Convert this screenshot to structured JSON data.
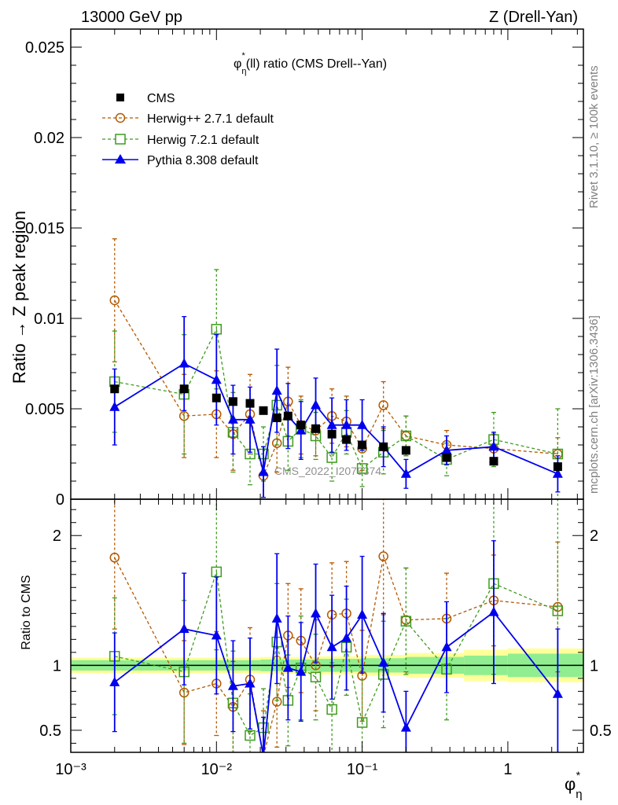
{
  "header": {
    "left": "13000 GeV pp",
    "right": "Z (Drell-Yan)"
  },
  "side_labels": {
    "rivet": "Rivet 3.1.10, ≥ 100k events",
    "mcplots": "mcplots.cern.ch [arXiv:1306.3436]"
  },
  "watermark": "CMS_2022_I2079374",
  "chart_data": [
    {
      "type": "scatter",
      "panel": "main",
      "title_main": "φ",
      "title_sup": "*",
      "title_sub": "η",
      "title_rest": "(ll) ratio (CMS Drell--Yan)",
      "ylabel": "Ratio → Z peak region",
      "x_scale": "log",
      "xlim": [
        0.001,
        3.3
      ],
      "ylim": [
        0,
        0.026
      ],
      "yticks": [
        0,
        0.005,
        0.01,
        0.015,
        0.02,
        0.025
      ],
      "ytick_labels": [
        "0",
        "0.005",
        "0.01",
        "0.015",
        "0.02",
        "0.025"
      ],
      "legend_position": "top-left",
      "x": [
        0.002,
        0.006,
        0.01,
        0.013,
        0.017,
        0.021,
        0.026,
        0.031,
        0.038,
        0.048,
        0.062,
        0.078,
        0.1,
        0.14,
        0.2,
        0.38,
        0.8,
        2.2
      ],
      "series": [
        {
          "name": "CMS",
          "color": "#000000",
          "marker": "filled-square",
          "line": "none",
          "values": [
            0.0061,
            0.0061,
            0.0056,
            0.0054,
            0.0053,
            0.0049,
            0.0045,
            0.0046,
            0.0041,
            0.0039,
            0.0036,
            0.0033,
            0.003,
            0.0029,
            0.0027,
            0.0023,
            0.0021,
            0.0018
          ]
        },
        {
          "name": "Herwig++ 2.7.1 default",
          "color": "#b35900",
          "marker": "open-circle",
          "line": "dashed",
          "values": [
            0.011,
            0.0046,
            0.0047,
            0.0036,
            0.0047,
            0.0013,
            0.0031,
            0.0054,
            0.0041,
            0.0038,
            0.0046,
            0.0043,
            0.0028,
            0.0052,
            0.0035,
            0.003,
            0.0028,
            0.0025
          ],
          "err": [
            0.0034,
            0.0023,
            0.0024,
            0.002,
            0.0022,
            0.0016,
            0.0016,
            0.0019,
            0.0016,
            0.0014,
            0.0015,
            0.0014,
            0.0012,
            0.0013,
            0.0011,
            0.0008,
            0.0008,
            0.0009
          ]
        },
        {
          "name": "Herwig 7.2.1 default",
          "color": "#3f9b1f",
          "marker": "open-square",
          "line": "dashed",
          "values": [
            0.0065,
            0.0058,
            0.0094,
            0.0037,
            0.0025,
            0.0025,
            0.0052,
            0.0032,
            0.0039,
            0.0035,
            0.0023,
            0.0037,
            0.0017,
            0.0026,
            0.0035,
            0.0022,
            0.0033,
            0.0025
          ],
          "err": [
            0.0028,
            0.0033,
            0.0033,
            0.0022,
            0.0017,
            0.0015,
            0.0022,
            0.0016,
            0.0016,
            0.0013,
            0.0013,
            0.0012,
            0.001,
            0.0012,
            0.0011,
            0.0009,
            0.0015,
            0.0025
          ]
        },
        {
          "name": "Pythia 8.308 default",
          "color": "#0000ee",
          "marker": "filled-triangle",
          "line": "solid",
          "values": [
            0.0051,
            0.0075,
            0.0066,
            0.0044,
            0.0044,
            0.0015,
            0.006,
            0.0046,
            0.0038,
            0.0052,
            0.0041,
            0.0041,
            0.0041,
            0.0029,
            0.0014,
            0.0027,
            0.0029,
            0.0014
          ],
          "err": [
            0.0021,
            0.0026,
            0.0025,
            0.0019,
            0.0018,
            0.0014,
            0.0023,
            0.0018,
            0.0016,
            0.0015,
            0.0015,
            0.0014,
            0.0014,
            0.0011,
            0.0008,
            0.0008,
            0.0008,
            0.001
          ]
        }
      ]
    },
    {
      "type": "line",
      "panel": "ratio",
      "ylabel": "Ratio to CMS",
      "xlabel_main": "φ",
      "xlabel_sup": "*",
      "xlabel_sub": "η",
      "x_scale": "log",
      "xlim": [
        0.001,
        3.3
      ],
      "ylim": [
        0.33,
        2.28
      ],
      "yticks": [
        0.5,
        1,
        2
      ],
      "ytick_labels": [
        "0.5",
        "1",
        "2"
      ],
      "xticks": [
        0.001,
        0.01,
        0.1,
        1
      ],
      "xtick_labels": [
        "10⁻³",
        "10⁻²",
        "10⁻¹",
        "1"
      ],
      "band": {
        "x_edges": [
          0.001,
          0.01,
          0.02,
          0.05,
          0.1,
          0.2,
          0.5,
          1.0,
          3.3
        ],
        "green_half": [
          0.04,
          0.04,
          0.045,
          0.05,
          0.055,
          0.065,
          0.075,
          0.09
        ],
        "yellow_half": [
          0.06,
          0.06,
          0.065,
          0.07,
          0.08,
          0.095,
          0.12,
          0.13
        ]
      },
      "x": [
        0.002,
        0.006,
        0.01,
        0.013,
        0.017,
        0.021,
        0.026,
        0.031,
        0.038,
        0.048,
        0.062,
        0.078,
        0.1,
        0.14,
        0.2,
        0.38,
        0.8,
        2.2
      ],
      "series": [
        {
          "name": "Herwig++ 2.7.1 default",
          "color": "#b35900",
          "marker": "open-circle",
          "line": "dashed",
          "values": [
            1.83,
            0.79,
            0.86,
            0.68,
            0.89,
            0.3,
            0.72,
            1.23,
            1.19,
            1.0,
            1.39,
            1.4,
            0.92,
            1.84,
            1.35,
            1.36,
            1.5,
            1.45
          ],
          "err": [
            0.55,
            0.4,
            0.4,
            0.35,
            0.4,
            0.35,
            0.35,
            0.4,
            0.4,
            0.35,
            0.4,
            0.4,
            0.35,
            0.45,
            0.4,
            0.35,
            0.35,
            0.5
          ]
        },
        {
          "name": "Herwig 7.2.1 default",
          "color": "#3f9b1f",
          "marker": "open-square",
          "line": "dashed",
          "values": [
            1.07,
            0.95,
            1.72,
            0.71,
            0.46,
            0.52,
            1.18,
            0.73,
            0.98,
            0.91,
            0.66,
            1.14,
            0.56,
            0.93,
            1.34,
            0.97,
            1.63,
            1.42
          ],
          "err": [
            0.45,
            0.55,
            0.6,
            0.4,
            0.32,
            0.3,
            0.45,
            0.35,
            0.4,
            0.33,
            0.36,
            0.37,
            0.33,
            0.41,
            0.41,
            0.39,
            0.7,
            1.3
          ]
        },
        {
          "name": "Pythia 8.308 default",
          "color": "#0000ee",
          "marker": "filled-triangle",
          "line": "solid",
          "values": [
            0.87,
            1.28,
            1.23,
            0.84,
            0.86,
            0.3,
            1.36,
            0.98,
            0.95,
            1.4,
            1.14,
            1.21,
            1.39,
            1.02,
            0.52,
            1.14,
            1.41,
            0.78
          ],
          "err": [
            0.38,
            0.43,
            0.45,
            0.35,
            0.35,
            0.3,
            0.5,
            0.4,
            0.38,
            0.38,
            0.4,
            0.4,
            0.45,
            0.38,
            0.28,
            0.35,
            0.55,
            0.5
          ]
        }
      ]
    }
  ]
}
